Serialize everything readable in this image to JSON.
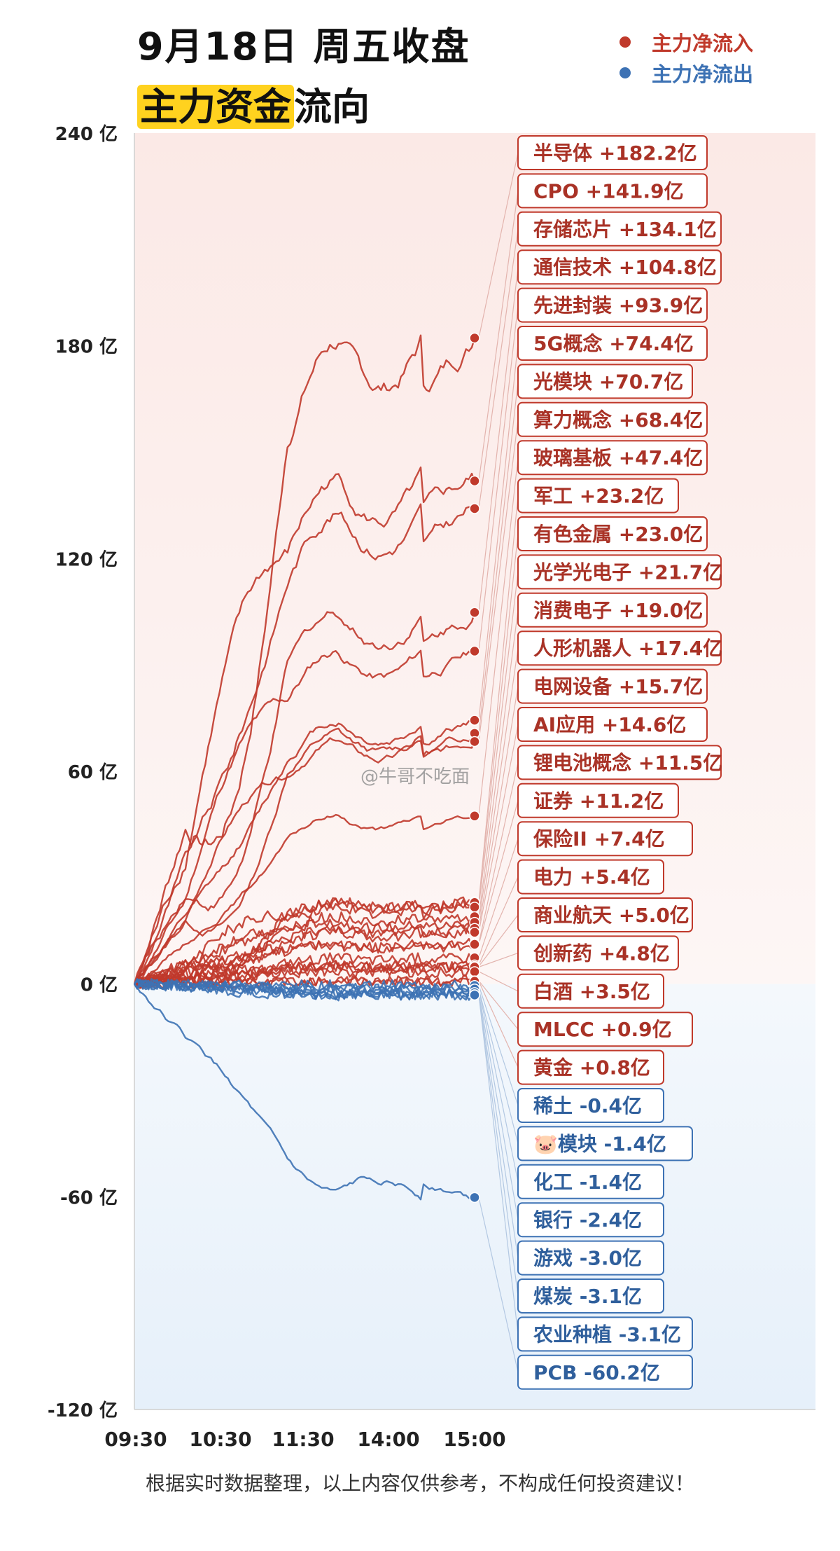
{
  "header": {
    "title_line1": "9月18日 周五收盘",
    "title_line2_highlight": "主力资金",
    "title_line2_rest": "流向"
  },
  "legend": [
    {
      "label": "主力净流入",
      "color": "#c0392b"
    },
    {
      "label": "主力净流出",
      "color": "#3d72b4"
    }
  ],
  "watermark": "@牛哥不吃面",
  "footer": "根据实时数据整理，以上内容仅供参考，不构成任何投资建议！",
  "chart_data": {
    "type": "line",
    "ylabel_unit": "亿",
    "ylim": [
      -120,
      240
    ],
    "yticks": [
      {
        "value": 240,
        "label": "240 亿"
      },
      {
        "value": 180,
        "label": "180 亿"
      },
      {
        "value": 120,
        "label": "120 亿"
      },
      {
        "value": 60,
        "label": "60 亿"
      },
      {
        "value": 0,
        "label": "0 亿"
      },
      {
        "value": -60,
        "label": "-60 亿"
      },
      {
        "value": -120,
        "label": "-120 亿"
      }
    ],
    "xticks": [
      "09:30",
      "10:30",
      "11:30",
      "14:00",
      "15:00"
    ],
    "inflow_color": "#c0392b",
    "outflow_color": "#3d72b4",
    "series": [
      {
        "name": "半导体",
        "value_label": "+182.2亿",
        "end": 182.2
      },
      {
        "name": "CPO",
        "value_label": "+141.9亿",
        "end": 141.9
      },
      {
        "name": "存储芯片",
        "value_label": "+134.1亿",
        "end": 134.1
      },
      {
        "name": "通信技术",
        "value_label": "+104.8亿",
        "end": 104.8
      },
      {
        "name": "先进封装",
        "value_label": "+93.9亿",
        "end": 93.9
      },
      {
        "name": "5G概念",
        "value_label": "+74.4亿",
        "end": 74.4
      },
      {
        "name": "光模块",
        "value_label": "+70.7亿",
        "end": 70.7
      },
      {
        "name": "算力概念",
        "value_label": "+68.4亿",
        "end": 68.4
      },
      {
        "name": "玻璃基板",
        "value_label": "+47.4亿",
        "end": 47.4
      },
      {
        "name": "军工",
        "value_label": "+23.2亿",
        "end": 23.2
      },
      {
        "name": "有色金属",
        "value_label": "+23.0亿",
        "end": 23.0
      },
      {
        "name": "光学光电子",
        "value_label": "+21.7亿",
        "end": 21.7
      },
      {
        "name": "消费电子",
        "value_label": "+19.0亿",
        "end": 19.0
      },
      {
        "name": "人形机器人",
        "value_label": "+17.4亿",
        "end": 17.4
      },
      {
        "name": "电网设备",
        "value_label": "+15.7亿",
        "end": 15.7
      },
      {
        "name": "AI应用",
        "value_label": "+14.6亿",
        "end": 14.6
      },
      {
        "name": "锂电池概念",
        "value_label": "+11.5亿",
        "end": 11.5
      },
      {
        "name": "证券",
        "value_label": "+11.2亿",
        "end": 11.2
      },
      {
        "name": "保险II",
        "value_label": "+7.4亿",
        "end": 7.4
      },
      {
        "name": "电力",
        "value_label": "+5.4亿",
        "end": 5.4
      },
      {
        "name": "商业航天",
        "value_label": "+5.0亿",
        "end": 5.0
      },
      {
        "name": "创新药",
        "value_label": "+4.8亿",
        "end": 4.8
      },
      {
        "name": "白酒",
        "value_label": "+3.5亿",
        "end": 3.5
      },
      {
        "name": "MLCC",
        "value_label": "+0.9亿",
        "end": 0.9
      },
      {
        "name": "黄金",
        "value_label": "+0.8亿",
        "end": 0.8
      },
      {
        "name": "稀土",
        "value_label": "-0.4亿",
        "end": -0.4
      },
      {
        "name": "🐷模块",
        "value_label": "-1.4亿",
        "end": -1.4
      },
      {
        "name": "化工",
        "value_label": "-1.4亿",
        "end": -1.4
      },
      {
        "name": "银行",
        "value_label": "-2.4亿",
        "end": -2.4
      },
      {
        "name": "游戏",
        "value_label": "-3.0亿",
        "end": -3.0
      },
      {
        "name": "煤炭",
        "value_label": "-3.1亿",
        "end": -3.1
      },
      {
        "name": "农业种植",
        "value_label": "-3.1亿",
        "end": -3.1
      },
      {
        "name": "PCB",
        "value_label": "-60.2亿",
        "end": -60.2
      }
    ]
  }
}
